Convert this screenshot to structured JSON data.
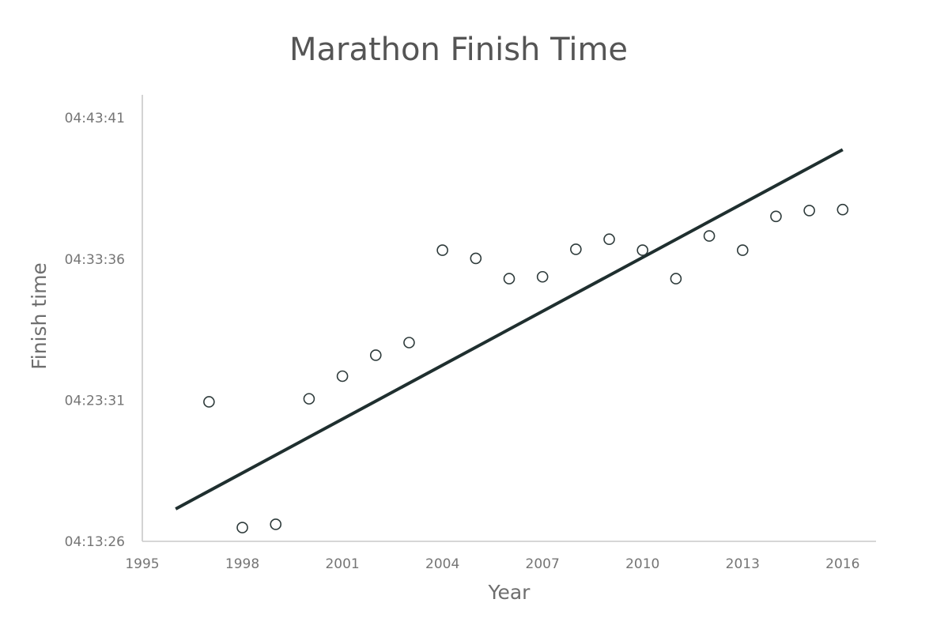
{
  "chart_data": {
    "type": "scatter",
    "title": "Marathon Finish Time",
    "xlabel": "Year",
    "ylabel": "Finish time",
    "xlim": [
      1995,
      2017
    ],
    "x_ticks": [
      1995,
      1998,
      2001,
      2004,
      2007,
      2010,
      2013,
      2016
    ],
    "ylim": [
      "04:13:26",
      "04:45:20"
    ],
    "y_ticks": [
      "04:13:26",
      "04:23:31",
      "04:33:36",
      "04:43:41"
    ],
    "grid": false,
    "legend": "none",
    "points": [
      {
        "x": 1997,
        "y": "04:23:24"
      },
      {
        "x": 1998,
        "y": "04:14:25"
      },
      {
        "x": 1999,
        "y": "04:14:39"
      },
      {
        "x": 2000,
        "y": "04:23:37"
      },
      {
        "x": 2001,
        "y": "04:25:14"
      },
      {
        "x": 2002,
        "y": "04:26:44"
      },
      {
        "x": 2003,
        "y": "04:27:38"
      },
      {
        "x": 2004,
        "y": "04:34:14"
      },
      {
        "x": 2005,
        "y": "04:33:39"
      },
      {
        "x": 2006,
        "y": "04:32:12"
      },
      {
        "x": 2007,
        "y": "04:32:20"
      },
      {
        "x": 2008,
        "y": "04:34:18"
      },
      {
        "x": 2009,
        "y": "04:35:01"
      },
      {
        "x": 2010,
        "y": "04:34:14"
      },
      {
        "x": 2011,
        "y": "04:32:12"
      },
      {
        "x": 2012,
        "y": "04:35:15"
      },
      {
        "x": 2013,
        "y": "04:34:14"
      },
      {
        "x": 2014,
        "y": "04:36:39"
      },
      {
        "x": 2015,
        "y": "04:37:04"
      },
      {
        "x": 2016,
        "y": "04:37:08"
      }
    ],
    "trendline": {
      "type": "linear",
      "start": {
        "x": 1996,
        "y": "04:15:45"
      },
      "end": {
        "x": 2016,
        "y": "04:41:25"
      }
    },
    "colors": {
      "marker_stroke": "#2d3a3a",
      "trendline": "#1f2f2f",
      "axis": "#c8c8c8",
      "text": "#757575"
    }
  }
}
